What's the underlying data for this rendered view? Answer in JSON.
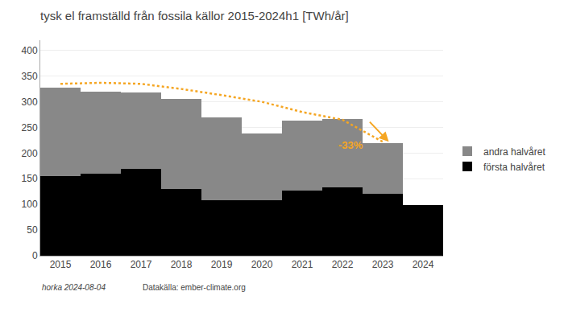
{
  "chart_data": {
    "type": "bar",
    "title": "tysk el framställd från fossila källor 2015-2024h1 [TWh/år]",
    "stacked": true,
    "x": [
      2015,
      2016,
      2017,
      2018,
      2019,
      2020,
      2021,
      2022,
      2023,
      2024
    ],
    "series": [
      {
        "name": "första halvåret",
        "color": "#000000",
        "type": "bar",
        "values": [
          155,
          160,
          170,
          130,
          108,
          108,
          127,
          133,
          120,
          99
        ]
      },
      {
        "name": "andra halvåret",
        "color": "#888888",
        "type": "bar",
        "values": [
          173,
          160,
          148,
          175,
          161,
          130,
          136,
          134,
          100,
          0
        ]
      },
      {
        "type": "line",
        "color": "#f5a623",
        "line_style": "dotted",
        "values": [
          335,
          337,
          335,
          325,
          313,
          300,
          280,
          265,
          222,
          null
        ]
      }
    ],
    "annotations": [
      {
        "text": "-33%",
        "x": 2021.85,
        "y": 200,
        "color": "#f5a623"
      }
    ],
    "arrows": [
      {
        "from": [
          2022.65,
          263
        ],
        "to": [
          2023.15,
          222
        ],
        "color": "#f5a623"
      }
    ],
    "xlim": [
      2014.5,
      2024.5
    ],
    "xticks": [
      2015,
      2016,
      2017,
      2018,
      2019,
      2020,
      2021,
      2022,
      2023,
      2024
    ],
    "ylim": [
      0,
      420
    ],
    "yticks": [
      0,
      50,
      100,
      150,
      200,
      250,
      300,
      350,
      400
    ],
    "grid": true,
    "legend": "right",
    "footnote": "horka 2024-08-04",
    "source": "Datakälla: ember-climate.org"
  }
}
